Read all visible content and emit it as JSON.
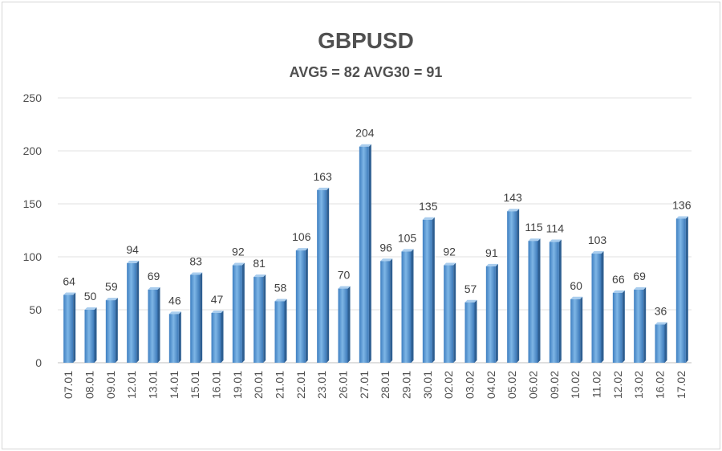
{
  "chart_data": {
    "type": "bar",
    "title": "GBPUSD",
    "subtitle": "AVG5 = 82 AVG30 = 91",
    "xlabel": "",
    "ylabel": "",
    "ylim": [
      0,
      250
    ],
    "yticks": [
      0,
      50,
      100,
      150,
      200,
      250
    ],
    "grid": true,
    "bar_color": "#5b9bd5",
    "categories": [
      "07.01",
      "08.01",
      "09.01",
      "12.01",
      "13.01",
      "14.01",
      "15.01",
      "16.01",
      "19.01",
      "20.01",
      "21.01",
      "22.01",
      "23.01",
      "26.01",
      "27.01",
      "28.01",
      "29.01",
      "30.01",
      "02.02",
      "03.02",
      "04.02",
      "05.02",
      "06.02",
      "09.02",
      "10.02",
      "11.02",
      "12.02",
      "13.02",
      "16.02",
      "17.02"
    ],
    "values": [
      64,
      50,
      59,
      94,
      69,
      46,
      83,
      47,
      92,
      81,
      58,
      106,
      163,
      70,
      204,
      96,
      105,
      135,
      92,
      57,
      91,
      143,
      115,
      114,
      60,
      103,
      66,
      69,
      36,
      136
    ]
  }
}
